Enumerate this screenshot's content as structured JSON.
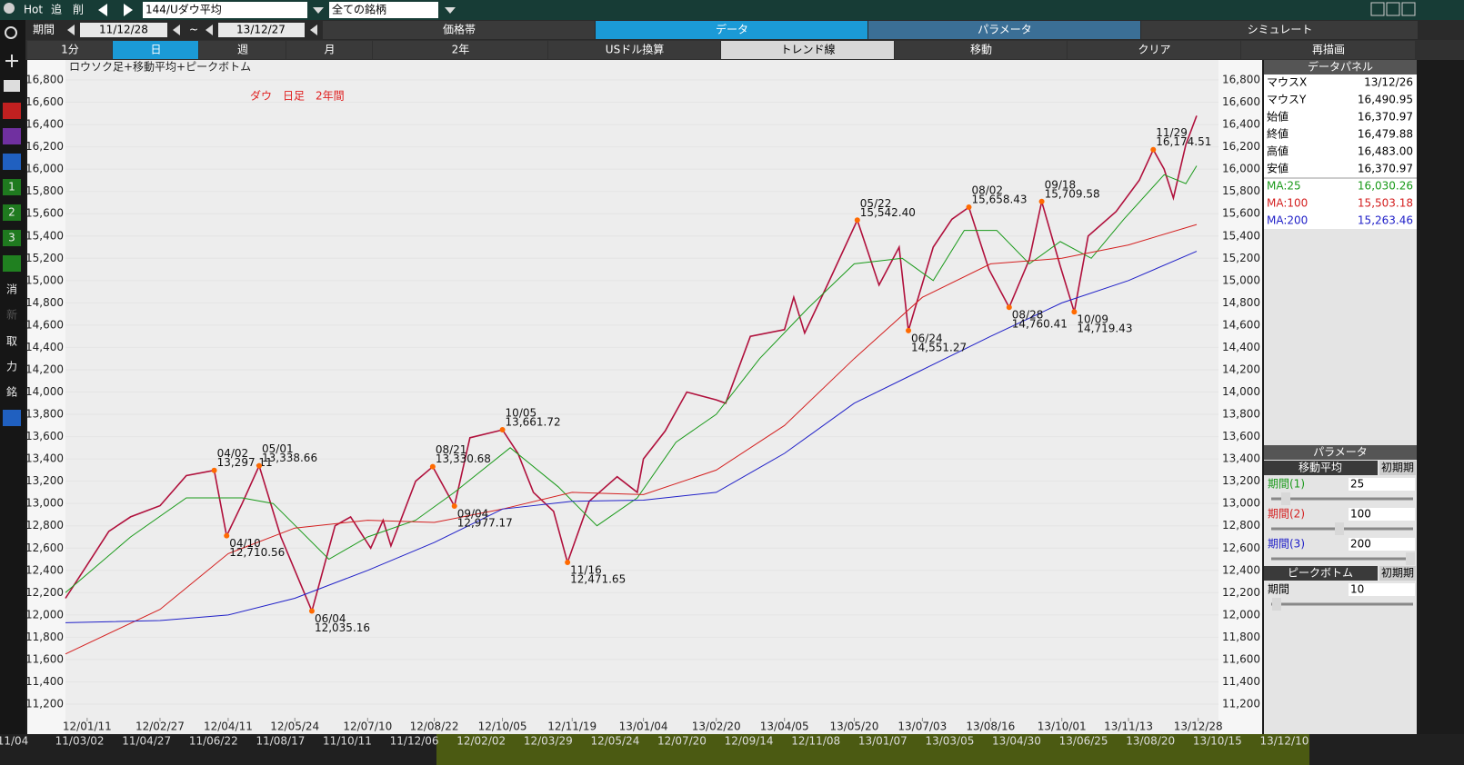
{
  "header": {
    "hot": "Hot",
    "add": "追",
    "del": "削",
    "symbol": "144/Uダウ平均",
    "universe": "全ての銘柄"
  },
  "toolbar": {
    "period": "期間",
    "from": "11/12/28",
    "sep": "~",
    "to": "13/12/27",
    "tabs": [
      "価格帯",
      "データ",
      "パラメータ",
      "シミュレート"
    ]
  },
  "buttons": [
    "1分",
    "日",
    "週",
    "月",
    "2年",
    "USドル換算",
    "トレンド線",
    "移動",
    "クリア",
    "再描画"
  ],
  "side_tools": [
    "1",
    "2",
    "3",
    "消",
    "新",
    "取",
    "力",
    "銘"
  ],
  "chart_data": {
    "type": "line",
    "title": "ロウソク足+移動平均+ピークボトム",
    "subtitle": "ダウ　日足　2年間",
    "xlim": [
      "11/12/28",
      "13/12/27"
    ],
    "ylim": [
      11200,
      16800
    ],
    "yticks": [
      {
        "value": 11200,
        "label": "11,200"
      },
      {
        "value": 11400,
        "label": "11,400"
      },
      {
        "value": 11600,
        "label": "11,600"
      },
      {
        "value": 11800,
        "label": "11,800"
      },
      {
        "value": 12000,
        "label": "12,000"
      },
      {
        "value": 12200,
        "label": "12,200"
      },
      {
        "value": 12400,
        "label": "12,400"
      },
      {
        "value": 12600,
        "label": "12,600"
      },
      {
        "value": 12800,
        "label": "12,800"
      },
      {
        "value": 13000,
        "label": "13,000"
      },
      {
        "value": 13200,
        "label": "13,200"
      },
      {
        "value": 13400,
        "label": "13,400"
      },
      {
        "value": 13600,
        "label": "13,600"
      },
      {
        "value": 13800,
        "label": "13,800"
      },
      {
        "value": 14000,
        "label": "14,000"
      },
      {
        "value": 14200,
        "label": "14,200"
      },
      {
        "value": 14400,
        "label": "14,400"
      },
      {
        "value": 14600,
        "label": "14,600"
      },
      {
        "value": 14800,
        "label": "14,800"
      },
      {
        "value": 15000,
        "label": "15,000"
      },
      {
        "value": 15200,
        "label": "15,200"
      },
      {
        "value": 15400,
        "label": "15,400"
      },
      {
        "value": 15600,
        "label": "15,600"
      },
      {
        "value": 15800,
        "label": "15,800"
      },
      {
        "value": 16000,
        "label": "16,000"
      },
      {
        "value": 16200,
        "label": "16,200"
      },
      {
        "value": 16400,
        "label": "16,400"
      },
      {
        "value": 16600,
        "label": "16,600"
      },
      {
        "value": 16800,
        "label": "16,800"
      }
    ],
    "xticks": [
      "12/01/11",
      "12/02/27",
      "12/04/11",
      "12/05/24",
      "12/07/10",
      "12/08/22",
      "12/10/05",
      "12/11/19",
      "13/01/04",
      "13/02/20",
      "13/04/05",
      "13/05/20",
      "13/07/03",
      "13/08/16",
      "13/10/01",
      "13/11/13",
      "13/12/28"
    ],
    "series": [
      {
        "color": "#b0103c",
        "x": [
          "11/12/28",
          "12/01/11",
          "12/01/25",
          "12/02/08",
          "12/02/27",
          "12/03/15",
          "12/04/02",
          "12/04/10",
          "12/04/20",
          "12/05/01",
          "12/05/15",
          "12/06/04",
          "12/06/19",
          "12/06/29",
          "12/07/12",
          "12/07/20",
          "12/07/25",
          "12/08/10",
          "12/08/21",
          "12/09/04",
          "12/09/14",
          "12/10/05",
          "12/10/15",
          "12/10/25",
          "12/11/07",
          "12/11/16",
          "12/11/30",
          "12/12/18",
          "12/12/31",
          "13/01/04",
          "13/01/18",
          "13/02/01",
          "13/02/20",
          "13/02/26",
          "13/03/14",
          "13/04/05",
          "13/04/11",
          "13/04/18",
          "13/05/03",
          "13/05/22",
          "13/06/05",
          "13/06/18",
          "13/06/24",
          "13/07/10",
          "13/07/22",
          "13/08/02",
          "13/08/15",
          "13/08/28",
          "13/09/10",
          "13/09/18",
          "13/09/30",
          "13/10/09",
          "13/10/18",
          "13/11/05",
          "13/11/20",
          "13/11/29",
          "13/12/06",
          "13/12/12",
          "13/12/20",
          "13/12/27"
        ],
        "values": [
          12150,
          12450,
          12750,
          12880,
          12980,
          13250,
          13297,
          12710,
          13000,
          13338,
          12700,
          12035,
          12800,
          12880,
          12600,
          12850,
          12620,
          13200,
          13330,
          12977,
          13590,
          13661,
          13450,
          13100,
          12930,
          12471,
          13020,
          13240,
          13100,
          13400,
          13650,
          14000,
          13930,
          13900,
          14500,
          14560,
          14850,
          14530,
          14970,
          15542,
          14960,
          15300,
          14551,
          15300,
          15550,
          15658,
          15100,
          14760,
          15190,
          15709,
          15130,
          14719,
          15400,
          15620,
          15900,
          16174,
          16000,
          15740,
          16220,
          16479
        ]
      },
      {
        "name": "MA:25",
        "color": "#1a9a1a",
        "x": [
          "11/12/28",
          "12/02/08",
          "12/03/15",
          "12/04/20",
          "12/05/10",
          "12/06/15",
          "12/07/10",
          "12/08/10",
          "12/09/04",
          "12/10/10",
          "12/11/10",
          "12/12/05",
          "12/12/31",
          "13/01/25",
          "13/02/20",
          "13/03/20",
          "13/04/20",
          "13/05/20",
          "13/06/20",
          "13/07/10",
          "13/07/30",
          "13/08/20",
          "13/09/10",
          "13/09/30",
          "13/10/20",
          "13/11/10",
          "13/12/06",
          "13/12/20",
          "13/12/27"
        ],
        "values": [
          12200,
          12700,
          13050,
          13050,
          13000,
          12500,
          12700,
          12850,
          13100,
          13500,
          13150,
          12800,
          13050,
          13550,
          13800,
          14300,
          14750,
          15150,
          15200,
          15000,
          15450,
          15450,
          15150,
          15350,
          15200,
          15550,
          15950,
          15870,
          16030
        ]
      },
      {
        "name": "MA:100",
        "color": "#d42020",
        "x": [
          "11/12/28",
          "12/02/27",
          "12/04/11",
          "12/05/24",
          "12/07/10",
          "12/08/22",
          "12/10/05",
          "12/11/19",
          "13/01/04",
          "13/02/20",
          "13/04/05",
          "13/05/20",
          "13/07/03",
          "13/08/16",
          "13/10/01",
          "13/11/13",
          "13/12/27"
        ],
        "values": [
          11650,
          12050,
          12550,
          12780,
          12850,
          12830,
          12950,
          13100,
          13080,
          13300,
          13700,
          14300,
          14850,
          15150,
          15200,
          15320,
          15503
        ]
      },
      {
        "name": "MA:200",
        "color": "#2020c8",
        "x": [
          "11/12/28",
          "12/02/27",
          "12/04/11",
          "12/05/24",
          "12/07/10",
          "12/08/22",
          "12/10/05",
          "12/11/19",
          "13/01/04",
          "13/02/20",
          "13/04/05",
          "13/05/20",
          "13/07/03",
          "13/08/16",
          "13/10/01",
          "13/11/13",
          "13/12/27"
        ],
        "values": [
          11930,
          11950,
          12000,
          12150,
          12400,
          12650,
          12950,
          13020,
          13030,
          13100,
          13450,
          13900,
          14200,
          14500,
          14800,
          15000,
          15263
        ]
      }
    ],
    "annotations": [
      {
        "date": "04/02",
        "value": 13297.11,
        "label": "13,297.11",
        "kind": "peak"
      },
      {
        "date": "04/10",
        "value": 12710.56,
        "label": "12,710.56",
        "kind": "bottom"
      },
      {
        "date": "05/01",
        "value": 13338.66,
        "label": "13,338.66",
        "kind": "peak"
      },
      {
        "date": "06/04",
        "value": 12035.16,
        "label": "12,035.16",
        "kind": "bottom"
      },
      {
        "date": "08/21",
        "value": 13330.68,
        "label": "13,330.68",
        "kind": "peak"
      },
      {
        "date": "09/04",
        "value": 12977.17,
        "label": "12,977.17",
        "kind": "bottom"
      },
      {
        "date": "10/05",
        "value": 13661.72,
        "label": "13,661.72",
        "kind": "peak"
      },
      {
        "date": "11/16",
        "value": 12471.65,
        "label": "12,471.65",
        "kind": "bottom"
      },
      {
        "date": "05/22",
        "value": 15542.4,
        "label": "15,542.40",
        "kind": "peak"
      },
      {
        "date": "06/24",
        "value": 14551.27,
        "label": "14,551.27",
        "kind": "bottom"
      },
      {
        "date": "08/02",
        "value": 15658.43,
        "label": "15,658.43",
        "kind": "peak"
      },
      {
        "date": "08/28",
        "value": 14760.41,
        "label": "14,760.41",
        "kind": "bottom"
      },
      {
        "date": "09/18",
        "value": 15709.58,
        "label": "15,709.58",
        "kind": "peak"
      },
      {
        "date": "10/09",
        "value": 14719.43,
        "label": "14,719.43",
        "kind": "bottom"
      },
      {
        "date": "11/29",
        "value": 16174.51,
        "label": "16,174.51",
        "kind": "peak"
      }
    ]
  },
  "data_panel": {
    "title": "データパネル",
    "rows": [
      [
        "マウスX",
        "13/12/26"
      ],
      [
        "マウスY",
        "16,490.95"
      ],
      [
        "始値",
        "16,370.97"
      ],
      [
        "終値",
        "16,479.88"
      ],
      [
        "高値",
        "16,483.00"
      ],
      [
        "安値",
        "16,370.97"
      ]
    ],
    "ma_rows": [
      [
        "MA:25",
        "16,030.26"
      ],
      [
        "MA:100",
        "15,503.18"
      ],
      [
        "MA:200",
        "15,263.46"
      ]
    ]
  },
  "parameters": {
    "title": "パラメータ",
    "ma": {
      "title": "移動平均",
      "reset": "初期期",
      "periods": [
        [
          "期間(1)",
          "25"
        ],
        [
          "期間(2)",
          "100"
        ],
        [
          "期間(3)",
          "200"
        ]
      ]
    },
    "peak": {
      "title": "ピークボトム",
      "reset": "初期期",
      "periods": [
        [
          "期間",
          "10"
        ]
      ]
    }
  },
  "scroller": [
    "11/04",
    "11/03/02",
    "11/04/27",
    "11/06/22",
    "11/08/17",
    "11/10/11",
    "11/12/06",
    "12/02/02",
    "12/03/29",
    "12/05/24",
    "12/07/20",
    "12/09/14",
    "12/11/08",
    "13/01/07",
    "13/03/05",
    "13/04/30",
    "13/06/25",
    "13/08/20",
    "13/10/15",
    "13/12/10"
  ]
}
